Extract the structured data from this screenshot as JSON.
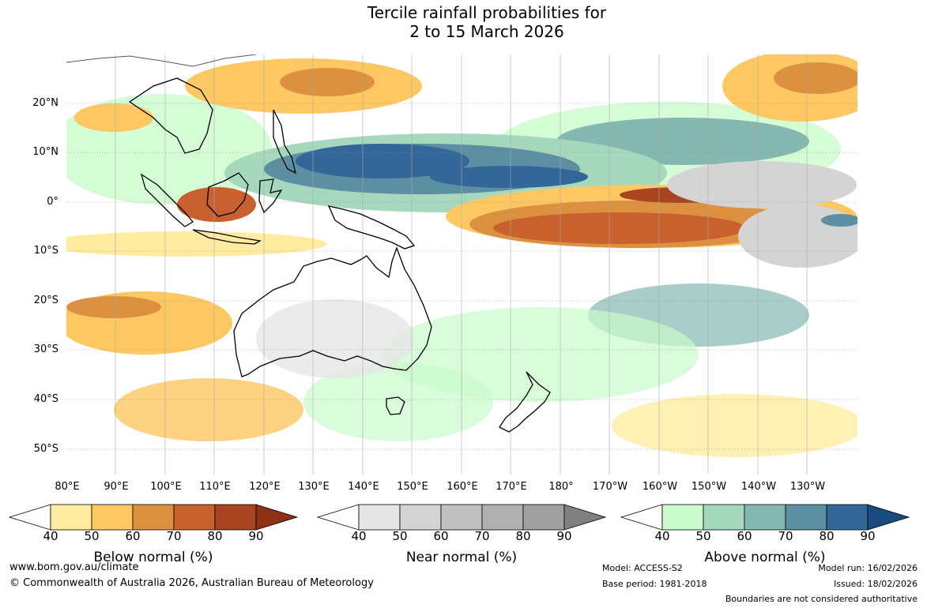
{
  "title": {
    "line1": "Tercile rainfall probabilities for",
    "line2": "2 to 15 March 2026"
  },
  "map": {
    "latitude_labels": [
      "20°N",
      "10°N",
      "0°",
      "10°S",
      "20°S",
      "30°S",
      "40°S",
      "50°S"
    ],
    "longitude_labels": [
      "80°E",
      "90°E",
      "100°E",
      "110°E",
      "120°E",
      "130°E",
      "140°E",
      "150°E",
      "160°E",
      "170°E",
      "180°",
      "170°W",
      "160°W",
      "150°W",
      "140°W",
      "130°W"
    ]
  },
  "colorbars": {
    "ticks": [
      "40",
      "50",
      "60",
      "70",
      "80",
      "90"
    ],
    "below": {
      "title": "Below normal (%)",
      "colors": [
        "#ffeca0",
        "#fdc862",
        "#dc9141",
        "#c8612e",
        "#a84520",
        "#8c3114"
      ]
    },
    "near": {
      "title": "Near normal (%)",
      "colors": [
        "#e6e6e6",
        "#d4d4d4",
        "#c0c0c0",
        "#b0b0b0",
        "#a0a0a0",
        "#808080"
      ]
    },
    "above": {
      "title": "Above normal (%)",
      "colors": [
        "#c9fbcb",
        "#a5d8bd",
        "#85b8b0",
        "#5b8fa1",
        "#33679a",
        "#1a4b7e"
      ]
    }
  },
  "footer": {
    "url": "www.bom.gov.au/climate",
    "copyright": "© Commonwealth of Australia 2026, Australian Bureau of Meteorology",
    "model": "Model: ACCESS-S2",
    "base_period": "Base period: 1981-2018",
    "model_run": "Model run: 16/02/2026",
    "issued": "Issued: 18/02/2026",
    "disclaimer": "Boundaries are not considered authoritative"
  }
}
